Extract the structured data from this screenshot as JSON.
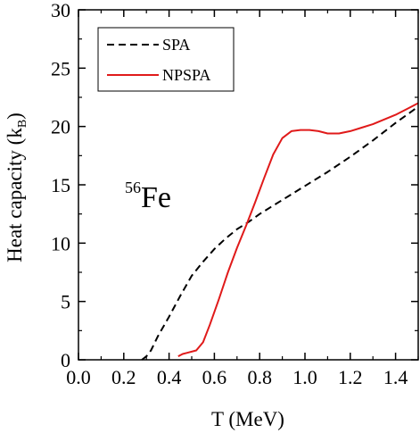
{
  "chart_data": {
    "type": "line",
    "xlabel_main": "T  (MeV)",
    "ylabel_main": "Heat capacity (k",
    "ylabel_sub": "B",
    "ylabel_close": ")",
    "xlim": [
      0.0,
      1.5
    ],
    "ylim": [
      0,
      30
    ],
    "x_ticks": [
      0.0,
      0.2,
      0.4,
      0.6,
      0.8,
      1.0,
      1.2,
      1.4
    ],
    "x_tick_labels": [
      "0.0",
      "0.2",
      "0.4",
      "0.6",
      "0.8",
      "1.0",
      "1.2",
      "1.4"
    ],
    "y_ticks": [
      0,
      5,
      10,
      15,
      20,
      25,
      30
    ],
    "y_tick_labels": [
      "0",
      "5",
      "10",
      "15",
      "20",
      "25",
      "30"
    ],
    "grid": false,
    "legend_position": "top-left",
    "annotation": {
      "sup": "56",
      "main": "Fe"
    },
    "series": [
      {
        "name": "SPA",
        "color": "#000000",
        "dash": "dashed",
        "points": [
          [
            0.28,
            0.0
          ],
          [
            0.3,
            0.3
          ],
          [
            0.32,
            0.8
          ],
          [
            0.35,
            2.0
          ],
          [
            0.4,
            3.7
          ],
          [
            0.45,
            5.5
          ],
          [
            0.5,
            7.2
          ],
          [
            0.55,
            8.4
          ],
          [
            0.6,
            9.5
          ],
          [
            0.65,
            10.4
          ],
          [
            0.7,
            11.2
          ],
          [
            0.75,
            11.8
          ],
          [
            0.8,
            12.5
          ],
          [
            0.85,
            13.1
          ],
          [
            0.9,
            13.7
          ],
          [
            1.0,
            14.9
          ],
          [
            1.1,
            16.1
          ],
          [
            1.2,
            17.4
          ],
          [
            1.3,
            18.8
          ],
          [
            1.4,
            20.3
          ],
          [
            1.5,
            21.7
          ]
        ]
      },
      {
        "name": "NPSPA",
        "color": "#e01a1a",
        "dash": "solid",
        "points": [
          [
            0.44,
            0.3
          ],
          [
            0.46,
            0.5
          ],
          [
            0.48,
            0.6
          ],
          [
            0.52,
            0.8
          ],
          [
            0.55,
            1.5
          ],
          [
            0.58,
            3.0
          ],
          [
            0.62,
            5.2
          ],
          [
            0.66,
            7.5
          ],
          [
            0.7,
            9.6
          ],
          [
            0.74,
            11.5
          ],
          [
            0.78,
            13.5
          ],
          [
            0.82,
            15.6
          ],
          [
            0.86,
            17.6
          ],
          [
            0.9,
            19.0
          ],
          [
            0.94,
            19.6
          ],
          [
            0.98,
            19.7
          ],
          [
            1.02,
            19.7
          ],
          [
            1.06,
            19.6
          ],
          [
            1.1,
            19.4
          ],
          [
            1.15,
            19.4
          ],
          [
            1.2,
            19.6
          ],
          [
            1.25,
            19.9
          ],
          [
            1.3,
            20.2
          ],
          [
            1.35,
            20.6
          ],
          [
            1.4,
            21.0
          ],
          [
            1.45,
            21.5
          ],
          [
            1.5,
            22.0
          ]
        ]
      }
    ]
  }
}
